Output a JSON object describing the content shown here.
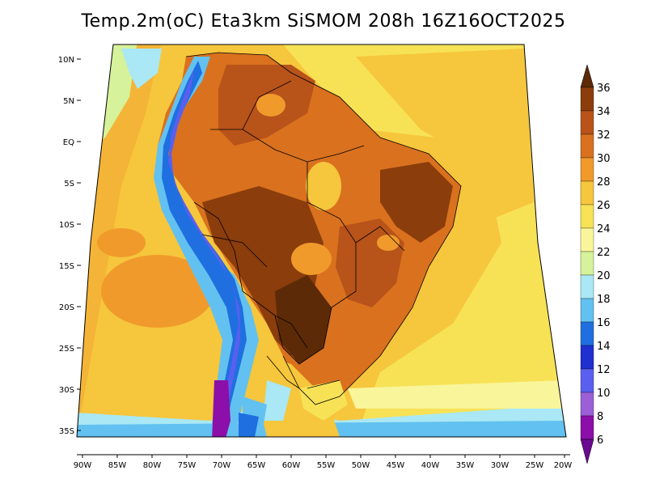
{
  "title": "Temp.2m(oC) Eta3km SiSMOM 208h 16Z16OCT2025",
  "lat_labels": [
    "10N",
    "5N",
    "EQ",
    "5S",
    "10S",
    "15S",
    "20S",
    "25S",
    "30S",
    "35S"
  ],
  "lon_labels": [
    "90W",
    "85W",
    "80W",
    "75W",
    "70W",
    "65W",
    "60W",
    "55W",
    "50W",
    "45W",
    "40W",
    "35W",
    "30W",
    "25W",
    "20W"
  ],
  "colorbar": {
    "labels": [
      "36",
      "34",
      "32",
      "30",
      "28",
      "26",
      "24",
      "22",
      "20",
      "18",
      "16",
      "14",
      "12",
      "10",
      "8",
      "6"
    ],
    "colors": [
      "#5c2a06",
      "#8b3d0c",
      "#b8531a",
      "#d9711e",
      "#f09a2c",
      "#f6c63c",
      "#f7e256",
      "#f9f59a",
      "#d6f29a",
      "#a9e8f4",
      "#62c1f0",
      "#1f6fe0",
      "#1f2fd0",
      "#5a5ff0",
      "#9b5fd6",
      "#8b0fa8"
    ]
  }
}
